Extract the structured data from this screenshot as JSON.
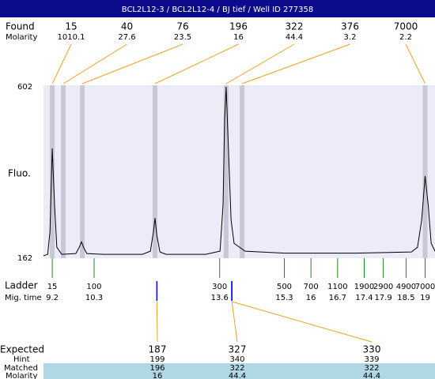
{
  "header": {
    "title": "BCL2L12-3 / BCL2L12-4 / BJ tief / Well ID 277358"
  },
  "found": {
    "label": "Found",
    "sub_label": "Molarity",
    "peaks": [
      {
        "size": 15,
        "molarity": 1010.1,
        "mig_time": 9.2
      },
      {
        "size": 40,
        "molarity": 27.6,
        "mig_time": 9.49
      },
      {
        "size": 76,
        "molarity": 23.5,
        "mig_time": 9.99
      },
      {
        "size": 196,
        "molarity": 16,
        "mig_time": 11.9
      },
      {
        "size": 322,
        "molarity": 44.4,
        "mig_time": 13.77
      },
      {
        "size": 376,
        "molarity": 3.2,
        "mig_time": 14.19
      },
      {
        "size": 7000,
        "molarity": 2.2,
        "mig_time": 19.0
      }
    ]
  },
  "chart_data": {
    "type": "line",
    "y_label": "Fluo.",
    "x": [
      8.97,
      9.08,
      9.14,
      9.2,
      9.26,
      9.32,
      9.45,
      9.82,
      9.91,
      9.97,
      10.03,
      10.11,
      10.53,
      11.57,
      11.78,
      11.86,
      11.9,
      11.95,
      12.03,
      12.19,
      13.23,
      13.61,
      13.69,
      13.73,
      13.77,
      13.84,
      13.9,
      13.98,
      14.27,
      15.31,
      17.18,
      18.64,
      18.8,
      18.91,
      19.0,
      19.08,
      19.16,
      19.26
    ],
    "values": [
      168,
      172,
      230,
      444,
      300,
      190,
      172,
      174,
      190,
      204,
      188,
      174,
      172,
      172,
      180,
      230,
      265,
      220,
      178,
      172,
      172,
      180,
      300,
      520,
      602,
      420,
      260,
      200,
      180,
      175,
      175,
      178,
      190,
      260,
      373,
      300,
      200,
      180
    ],
    "xlim": [
      8.97,
      19.26
    ],
    "ylim": [
      162,
      602
    ],
    "yticks": [
      162,
      602
    ],
    "color": "#000000"
  },
  "ladder": {
    "label": "Ladder",
    "sub_label": "Mig. time",
    "sizes": [
      15,
      100,
      300,
      500,
      700,
      1100,
      1900,
      2900,
      4900,
      7000
    ],
    "mig_times": [
      9.2,
      10.3,
      13.6,
      15.3,
      16,
      16.7,
      17.4,
      17.9,
      18.5,
      19
    ]
  },
  "expected": {
    "labels": [
      "Expected",
      "Hint",
      "Matched",
      "Molarity"
    ],
    "columns": [
      {
        "expected": 187,
        "hint": 199,
        "matched": 196,
        "molarity": 16,
        "mig_time": 11.95
      },
      {
        "expected": 327,
        "hint": 340,
        "matched": 322,
        "molarity": 44.4,
        "mig_time": 13.92
      },
      {
        "expected": 330,
        "hint": 339,
        "matched": 322,
        "molarity": 44.4,
        "mig_time": 13.92
      }
    ]
  }
}
